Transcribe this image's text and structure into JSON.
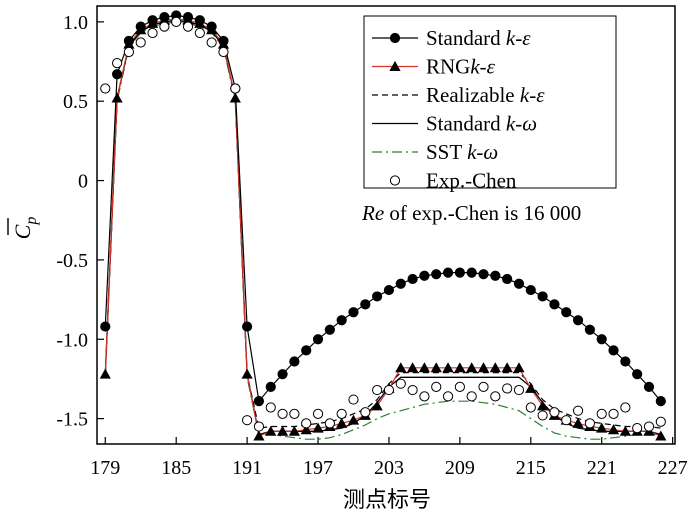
{
  "chart_data": {
    "type": "line",
    "xlabel": "测点标号",
    "ylabel": "C p",
    "xlim": [
      178.3,
      227.2
    ],
    "ylim": [
      -1.66,
      1.1
    ],
    "xticks": [
      179,
      185,
      191,
      197,
      203,
      209,
      215,
      221,
      227
    ],
    "xtick_labels": [
      "179",
      "185",
      "191",
      "197",
      "203",
      "209",
      "215",
      "221",
      "227"
    ],
    "yticks": [
      1.0,
      0.5,
      0,
      -0.5,
      -1.0,
      -1.5
    ],
    "ytick_labels": [
      "1.0",
      "0.5",
      "0",
      "-0.5",
      "-1.0",
      "-1.5"
    ],
    "annotation": {
      "italic": "Re",
      "rest": " of exp.-Chen is 16 000"
    },
    "legend_position": "top-right",
    "series": [
      {
        "name": "Standard k-ε",
        "legend_plain": "Standard ",
        "legend_italic": "k-ε",
        "color": "#000000",
        "line": "solid",
        "marker": "filled-circle",
        "marker_every": 1,
        "x": [
          179,
          180,
          181,
          182,
          183,
          184,
          185,
          186,
          187,
          188,
          189,
          190,
          191,
          192,
          193,
          194,
          195,
          196,
          197,
          198,
          199,
          200,
          201,
          202,
          203,
          204,
          205,
          206,
          207,
          208,
          209,
          210,
          211,
          212,
          213,
          214,
          215,
          216,
          217,
          218,
          219,
          220,
          221,
          222,
          223,
          224,
          225,
          226
        ],
        "y": [
          -0.92,
          0.67,
          0.88,
          0.97,
          1.01,
          1.03,
          1.04,
          1.03,
          1.01,
          0.97,
          0.88,
          0.58,
          -0.92,
          -1.39,
          -1.3,
          -1.22,
          -1.14,
          -1.07,
          -1.0,
          -0.94,
          -0.88,
          -0.83,
          -0.78,
          -0.73,
          -0.69,
          -0.65,
          -0.62,
          -0.6,
          -0.59,
          -0.58,
          -0.58,
          -0.58,
          -0.59,
          -0.6,
          -0.62,
          -0.65,
          -0.69,
          -0.73,
          -0.78,
          -0.83,
          -0.88,
          -0.94,
          -1.0,
          -1.07,
          -1.14,
          -1.22,
          -1.3,
          -1.39
        ]
      },
      {
        "name": "RNG k-ε",
        "legend_plain": "RNG",
        "legend_italic": "k-ε",
        "color": "#d9332b",
        "line": "solid",
        "marker": "filled-triangle",
        "marker_every": 1,
        "x": [
          179,
          180,
          181,
          182,
          183,
          184,
          185,
          186,
          187,
          188,
          189,
          190,
          191,
          192,
          193,
          194,
          195,
          196,
          197,
          198,
          199,
          200,
          201,
          202,
          203,
          204,
          205,
          206,
          207,
          208,
          209,
          210,
          211,
          212,
          213,
          214,
          215,
          216,
          217,
          218,
          219,
          220,
          221,
          222,
          223,
          224,
          225,
          226
        ],
        "y": [
          -1.22,
          0.52,
          0.86,
          0.95,
          0.99,
          1.01,
          1.02,
          1.01,
          0.99,
          0.95,
          0.86,
          0.52,
          -1.22,
          -1.61,
          -1.58,
          -1.58,
          -1.58,
          -1.57,
          -1.56,
          -1.55,
          -1.53,
          -1.51,
          -1.48,
          -1.42,
          -1.31,
          -1.18,
          -1.18,
          -1.18,
          -1.18,
          -1.18,
          -1.18,
          -1.18,
          -1.18,
          -1.18,
          -1.18,
          -1.18,
          -1.31,
          -1.42,
          -1.48,
          -1.51,
          -1.53,
          -1.55,
          -1.56,
          -1.57,
          -1.58,
          -1.58,
          -1.58,
          -1.61
        ]
      },
      {
        "name": "Realizable k-ε",
        "legend_plain": "Realizable ",
        "legend_italic": "k-ε",
        "color": "#000000",
        "line": "dashed",
        "marker": "none",
        "x": [
          179,
          180,
          181,
          182,
          183,
          184,
          185,
          186,
          187,
          188,
          189,
          190,
          191,
          192,
          193,
          194,
          195,
          196,
          197,
          198,
          199,
          200,
          201,
          202,
          203,
          204,
          205,
          206,
          207,
          208,
          209,
          210,
          211,
          212,
          213,
          214,
          215,
          216,
          217,
          218,
          219,
          220,
          221,
          222,
          223,
          224,
          225,
          226
        ],
        "y": [
          -1.22,
          0.52,
          0.85,
          0.94,
          0.98,
          1.0,
          1.01,
          1.0,
          0.98,
          0.94,
          0.85,
          0.52,
          -1.22,
          -1.56,
          -1.55,
          -1.55,
          -1.55,
          -1.54,
          -1.53,
          -1.52,
          -1.5,
          -1.47,
          -1.44,
          -1.38,
          -1.28,
          -1.21,
          -1.21,
          -1.21,
          -1.21,
          -1.21,
          -1.21,
          -1.21,
          -1.21,
          -1.21,
          -1.21,
          -1.21,
          -1.28,
          -1.38,
          -1.44,
          -1.47,
          -1.5,
          -1.52,
          -1.53,
          -1.54,
          -1.55,
          -1.55,
          -1.55,
          -1.56
        ]
      },
      {
        "name": "Standard k-ω",
        "legend_plain": "Standard ",
        "legend_italic": "k-ω",
        "color": "#000000",
        "line": "solid",
        "marker": "none",
        "x": [
          179,
          180,
          181,
          182,
          183,
          184,
          185,
          186,
          187,
          188,
          189,
          190,
          191,
          192,
          193,
          194,
          195,
          196,
          197,
          198,
          199,
          200,
          201,
          202,
          203,
          204,
          205,
          206,
          207,
          208,
          209,
          210,
          211,
          212,
          213,
          214,
          215,
          216,
          217,
          218,
          219,
          220,
          221,
          222,
          223,
          224,
          225,
          226
        ],
        "y": [
          -1.22,
          0.52,
          0.85,
          0.94,
          0.98,
          1.0,
          1.01,
          1.0,
          0.98,
          0.94,
          0.85,
          0.52,
          -1.22,
          -1.6,
          -1.58,
          -1.58,
          -1.58,
          -1.58,
          -1.58,
          -1.57,
          -1.56,
          -1.53,
          -1.48,
          -1.4,
          -1.3,
          -1.24,
          -1.24,
          -1.24,
          -1.24,
          -1.24,
          -1.24,
          -1.24,
          -1.24,
          -1.24,
          -1.24,
          -1.24,
          -1.3,
          -1.4,
          -1.48,
          -1.53,
          -1.56,
          -1.57,
          -1.58,
          -1.58,
          -1.58,
          -1.58,
          -1.58,
          -1.6
        ]
      },
      {
        "name": "SST k-ω",
        "legend_plain": "SST ",
        "legend_italic": "k-ω",
        "color": "#2e7d32",
        "line": "dashdot",
        "marker": "none",
        "x": [
          179,
          180,
          181,
          182,
          183,
          184,
          185,
          186,
          187,
          188,
          189,
          190,
          191,
          192,
          193,
          194,
          195,
          196,
          197,
          198,
          199,
          200,
          201,
          202,
          203,
          204,
          205,
          206,
          207,
          208,
          209,
          210,
          211,
          212,
          213,
          214,
          215,
          216,
          217,
          218,
          219,
          220,
          221,
          222,
          223,
          224,
          225,
          226
        ],
        "y": [
          -1.24,
          0.5,
          0.84,
          0.93,
          0.97,
          0.99,
          1.0,
          0.99,
          0.97,
          0.93,
          0.84,
          0.5,
          -1.24,
          -1.6,
          -1.6,
          -1.61,
          -1.62,
          -1.63,
          -1.63,
          -1.62,
          -1.6,
          -1.57,
          -1.54,
          -1.5,
          -1.47,
          -1.45,
          -1.43,
          -1.41,
          -1.4,
          -1.39,
          -1.39,
          -1.39,
          -1.4,
          -1.41,
          -1.43,
          -1.45,
          -1.5,
          -1.55,
          -1.59,
          -1.61,
          -1.62,
          -1.63,
          -1.63,
          -1.62,
          -1.61,
          -1.6,
          -1.6,
          -1.6
        ]
      },
      {
        "name": "Exp.-Chen",
        "legend_plain": "Exp.-Chen",
        "legend_italic": "",
        "color": "#000000",
        "line": "none",
        "marker": "open-circle",
        "x": [
          179,
          180,
          181,
          182,
          183,
          184,
          185,
          186,
          187,
          188,
          189,
          190,
          191,
          192,
          193,
          194,
          195,
          196,
          197,
          198,
          199,
          200,
          201,
          202,
          203,
          204,
          205,
          206,
          207,
          208,
          209,
          210,
          211,
          212,
          213,
          214,
          215,
          216,
          217,
          218,
          219,
          220,
          221,
          222,
          223,
          224,
          225,
          226
        ],
        "y": [
          0.58,
          0.74,
          0.81,
          0.87,
          0.93,
          0.97,
          1.0,
          0.97,
          0.93,
          0.87,
          0.81,
          0.58,
          -1.51,
          -1.55,
          -1.43,
          -1.47,
          -1.47,
          -1.53,
          -1.47,
          -1.53,
          -1.47,
          -1.38,
          -1.46,
          -1.32,
          -1.32,
          -1.28,
          -1.32,
          -1.36,
          -1.3,
          -1.36,
          -1.3,
          -1.36,
          -1.3,
          -1.36,
          -1.31,
          -1.32,
          -1.43,
          -1.48,
          -1.46,
          -1.51,
          -1.45,
          -1.53,
          -1.47,
          -1.47,
          -1.43,
          -1.56,
          -1.55,
          -1.52
        ]
      }
    ]
  }
}
